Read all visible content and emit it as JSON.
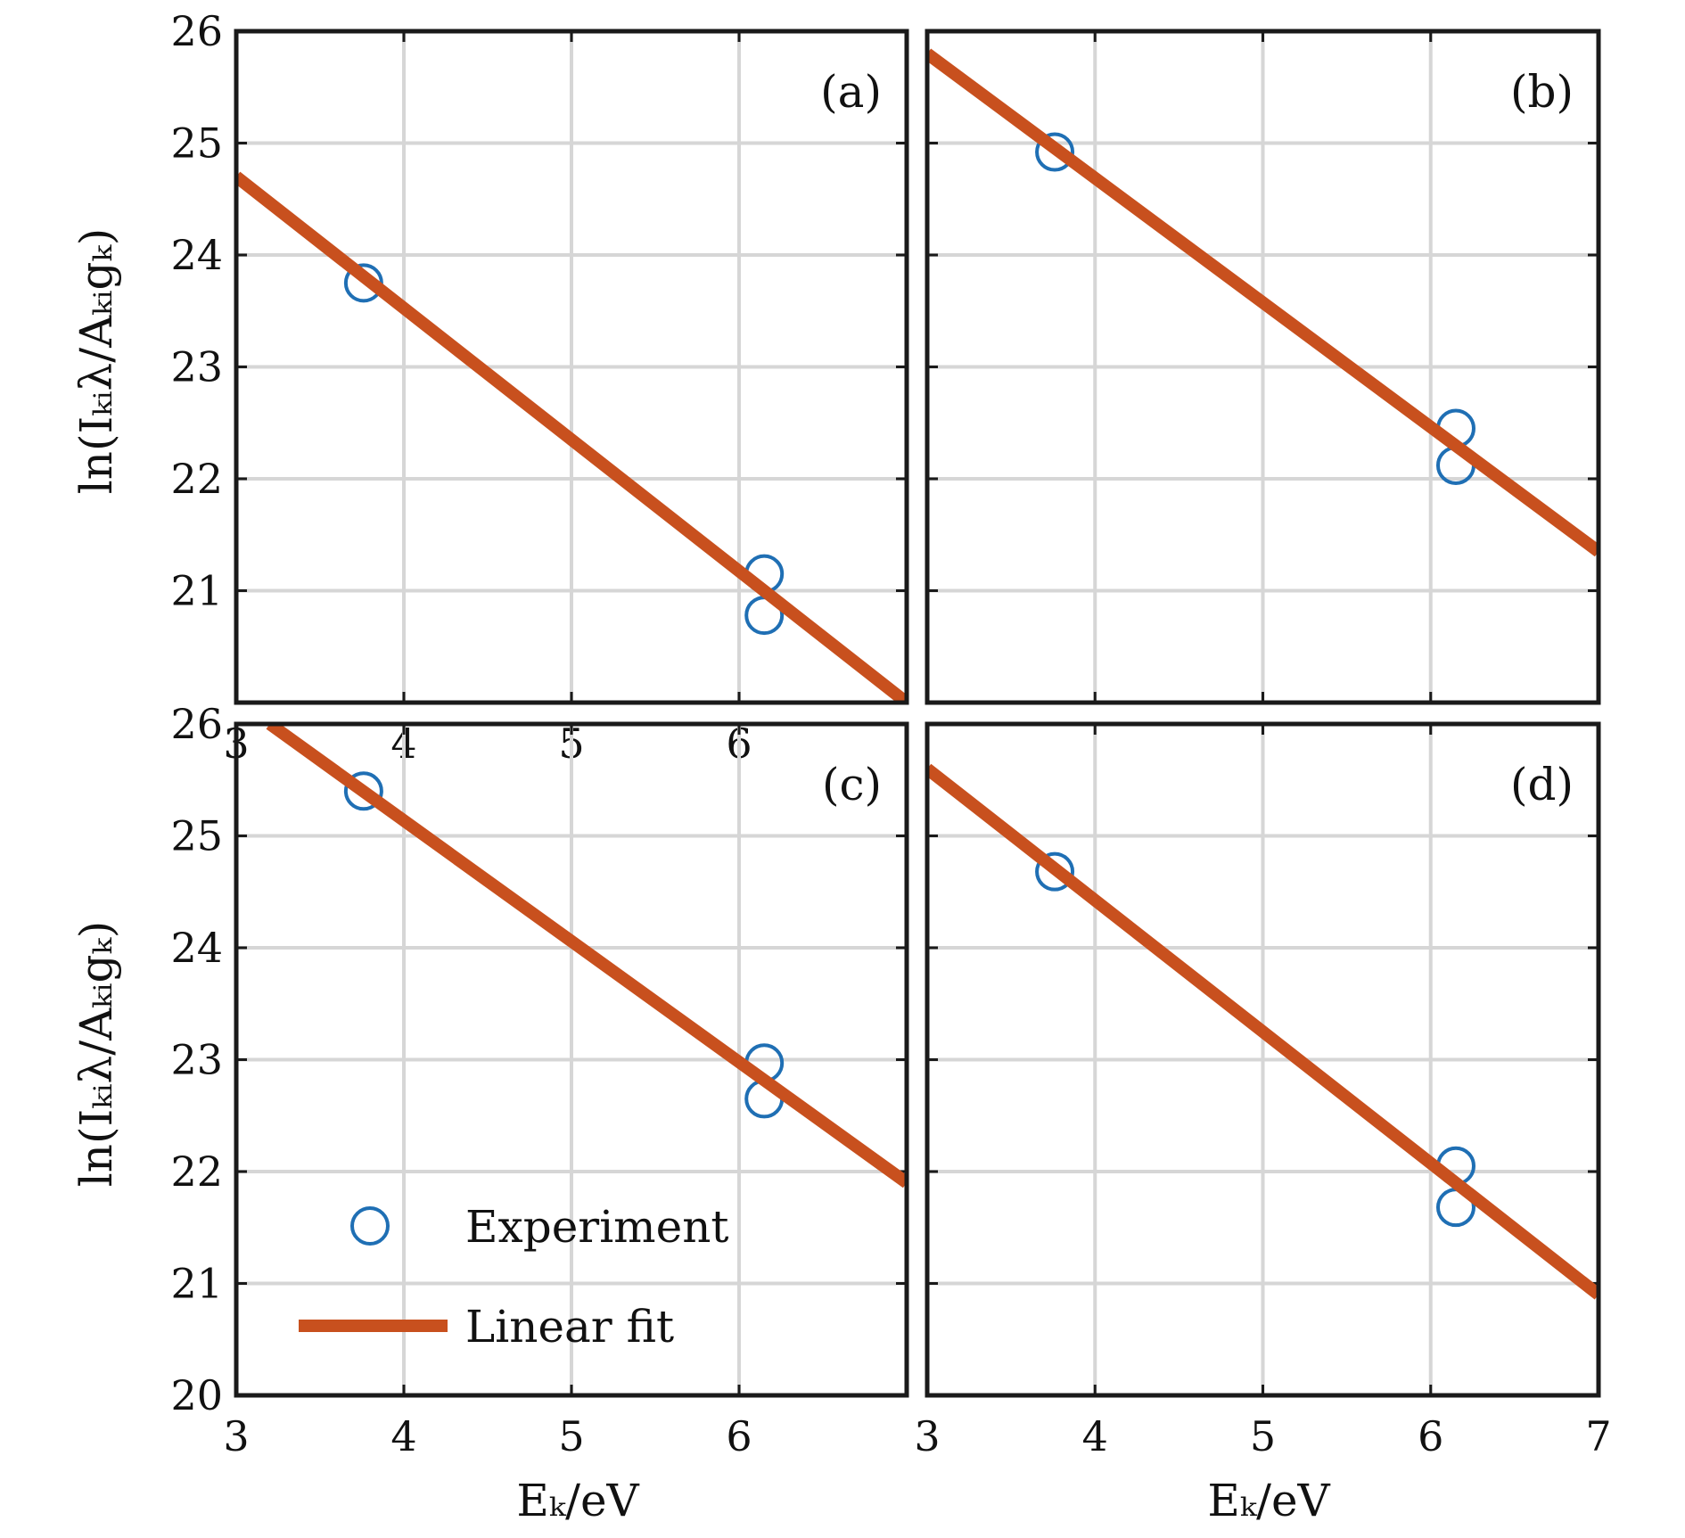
{
  "figure": {
    "y_axis_label": "ln(Iₖᵢλ/Aₖᵢgₖ)",
    "x_axis_label": "Eₖ/eV",
    "colors": {
      "experiment": "#1f6fb4",
      "fit": "#c8501e",
      "grid": "#d6d6d6",
      "frame": "#1a1a1a"
    },
    "legend": {
      "experiment_label": "Experiment",
      "fit_label": "Linear fit"
    }
  },
  "chart_data": [
    {
      "type": "scatter",
      "panel": "(a)",
      "xlim": [
        3,
        7
      ],
      "ylim": [
        20,
        26
      ],
      "xticks": [
        3,
        4,
        5,
        6
      ],
      "yticks": [
        21,
        22,
        23,
        24,
        25,
        26
      ],
      "series": [
        {
          "name": "Experiment",
          "x": [
            3.76,
            6.15,
            6.15
          ],
          "y": [
            23.75,
            21.15,
            20.78
          ]
        },
        {
          "name": "Linear fit",
          "x": [
            3.0,
            7.0
          ],
          "y": [
            24.7,
            20.0
          ]
        }
      ]
    },
    {
      "type": "scatter",
      "panel": "(b)",
      "xlim": [
        3,
        7
      ],
      "ylim": [
        20,
        26
      ],
      "xticks": [],
      "yticks": [],
      "series": [
        {
          "name": "Experiment",
          "x": [
            3.76,
            6.15,
            6.15
          ],
          "y": [
            24.92,
            22.45,
            22.12
          ]
        },
        {
          "name": "Linear fit",
          "x": [
            3.0,
            7.0
          ],
          "y": [
            25.8,
            21.35
          ]
        }
      ]
    },
    {
      "type": "scatter",
      "panel": "(c)",
      "xlim": [
        3,
        7
      ],
      "ylim": [
        20,
        26
      ],
      "xticks": [
        3,
        4,
        5,
        6
      ],
      "yticks": [
        20,
        21,
        22,
        23,
        24,
        25,
        26
      ],
      "series": [
        {
          "name": "Experiment",
          "x": [
            3.76,
            6.15,
            6.15
          ],
          "y": [
            25.4,
            22.97,
            22.65
          ]
        },
        {
          "name": "Linear fit",
          "x": [
            3.2,
            7.0
          ],
          "y": [
            26.0,
            21.9
          ]
        }
      ]
    },
    {
      "type": "scatter",
      "panel": "(d)",
      "xlim": [
        3,
        7
      ],
      "ylim": [
        20,
        26
      ],
      "xticks": [
        3,
        4,
        5,
        6,
        7
      ],
      "yticks": [],
      "series": [
        {
          "name": "Experiment",
          "x": [
            3.76,
            6.15,
            6.15
          ],
          "y": [
            24.68,
            22.05,
            21.68
          ]
        },
        {
          "name": "Linear fit",
          "x": [
            3.0,
            7.0
          ],
          "y": [
            25.6,
            20.9
          ]
        }
      ]
    }
  ]
}
